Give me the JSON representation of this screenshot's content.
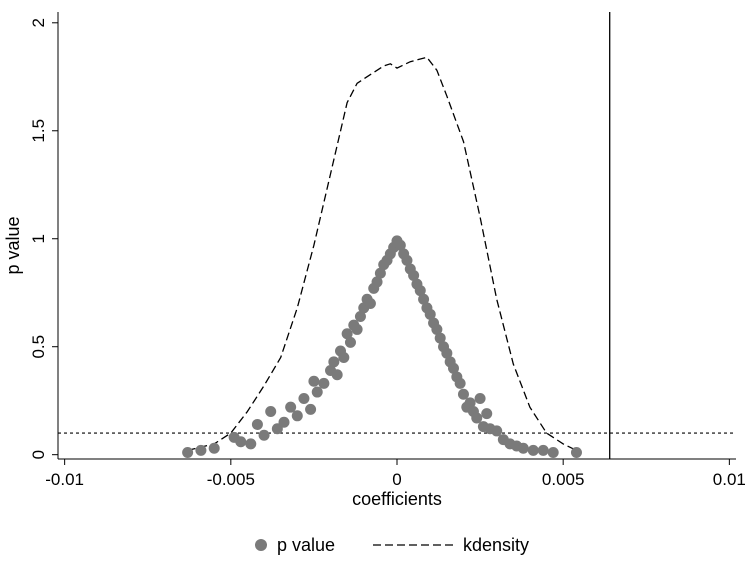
{
  "chart_data": {
    "type": "scatter",
    "xlabel": "coefficients",
    "ylabel": "p value",
    "xlim": [
      -0.0102,
      0.0102
    ],
    "ylim": [
      -0.02,
      2.05
    ],
    "x_ticks": [
      -0.01,
      -0.005,
      0,
      0.005,
      0.01
    ],
    "x_tick_labels": [
      "-0.01",
      "-0.005",
      "0",
      "0.005",
      "0.01"
    ],
    "y_ticks": [
      0,
      0.5,
      1,
      1.5,
      2
    ],
    "y_tick_labels": [
      "0",
      "0.5",
      "1",
      "1.5",
      "2"
    ],
    "grid": false,
    "legend_position": "bottom",
    "reference_lines": {
      "horizontal_y": 0.1,
      "vertical_x": 0.0064
    },
    "colors": {
      "points": "#7a7a7a",
      "density": "#000000",
      "axes": "#000000"
    },
    "series": [
      {
        "name": "p value",
        "kind": "scatter",
        "points": [
          [
            -0.0063,
            0.01
          ],
          [
            -0.0059,
            0.02
          ],
          [
            -0.0055,
            0.03
          ],
          [
            -0.0049,
            0.08
          ],
          [
            -0.0047,
            0.06
          ],
          [
            -0.0044,
            0.05
          ],
          [
            -0.0042,
            0.14
          ],
          [
            -0.004,
            0.09
          ],
          [
            -0.0038,
            0.2
          ],
          [
            -0.0036,
            0.12
          ],
          [
            -0.0034,
            0.15
          ],
          [
            -0.0032,
            0.22
          ],
          [
            -0.003,
            0.18
          ],
          [
            -0.0028,
            0.26
          ],
          [
            -0.0026,
            0.21
          ],
          [
            -0.0025,
            0.34
          ],
          [
            -0.0024,
            0.29
          ],
          [
            -0.0022,
            0.33
          ],
          [
            -0.002,
            0.39
          ],
          [
            -0.0019,
            0.43
          ],
          [
            -0.0018,
            0.37
          ],
          [
            -0.0017,
            0.48
          ],
          [
            -0.0016,
            0.45
          ],
          [
            -0.0015,
            0.56
          ],
          [
            -0.0014,
            0.52
          ],
          [
            -0.0013,
            0.6
          ],
          [
            -0.0012,
            0.58
          ],
          [
            -0.0011,
            0.64
          ],
          [
            -0.001,
            0.68
          ],
          [
            -0.0009,
            0.72
          ],
          [
            -0.0008,
            0.7
          ],
          [
            -0.0007,
            0.77
          ],
          [
            -0.0006,
            0.8
          ],
          [
            -0.0005,
            0.84
          ],
          [
            -0.0004,
            0.88
          ],
          [
            -0.0003,
            0.9
          ],
          [
            -0.0002,
            0.93
          ],
          [
            -0.0001,
            0.96
          ],
          [
            0.0,
            0.99
          ],
          [
            0.0001,
            0.97
          ],
          [
            0.0002,
            0.93
          ],
          [
            0.0003,
            0.9
          ],
          [
            0.0004,
            0.86
          ],
          [
            0.0005,
            0.83
          ],
          [
            0.0006,
            0.79
          ],
          [
            0.0007,
            0.76
          ],
          [
            0.0008,
            0.72
          ],
          [
            0.0009,
            0.68
          ],
          [
            0.001,
            0.65
          ],
          [
            0.0011,
            0.61
          ],
          [
            0.0012,
            0.58
          ],
          [
            0.0013,
            0.54
          ],
          [
            0.0014,
            0.5
          ],
          [
            0.0015,
            0.47
          ],
          [
            0.0016,
            0.43
          ],
          [
            0.0017,
            0.4
          ],
          [
            0.0018,
            0.36
          ],
          [
            0.0019,
            0.33
          ],
          [
            0.002,
            0.28
          ],
          [
            0.0021,
            0.22
          ],
          [
            0.0022,
            0.24
          ],
          [
            0.0023,
            0.2
          ],
          [
            0.0024,
            0.17
          ],
          [
            0.0025,
            0.26
          ],
          [
            0.0026,
            0.13
          ],
          [
            0.0027,
            0.19
          ],
          [
            0.0028,
            0.12
          ],
          [
            0.003,
            0.11
          ],
          [
            0.0032,
            0.07
          ],
          [
            0.0034,
            0.05
          ],
          [
            0.0036,
            0.04
          ],
          [
            0.0038,
            0.03
          ],
          [
            0.0041,
            0.02
          ],
          [
            0.0044,
            0.02
          ],
          [
            0.0047,
            0.01
          ],
          [
            0.0054,
            0.01
          ]
        ]
      },
      {
        "name": "kdensity",
        "kind": "line",
        "style": "dashed",
        "points": [
          [
            -0.0063,
            0.02
          ],
          [
            -0.0055,
            0.05
          ],
          [
            -0.005,
            0.1
          ],
          [
            -0.0045,
            0.2
          ],
          [
            -0.004,
            0.32
          ],
          [
            -0.0035,
            0.45
          ],
          [
            -0.003,
            0.68
          ],
          [
            -0.0025,
            0.97
          ],
          [
            -0.002,
            1.3
          ],
          [
            -0.0015,
            1.63
          ],
          [
            -0.0012,
            1.72
          ],
          [
            -0.0008,
            1.76
          ],
          [
            -0.0004,
            1.8
          ],
          [
            -0.0002,
            1.81
          ],
          [
            0.0,
            1.79
          ],
          [
            0.0004,
            1.82
          ],
          [
            0.0009,
            1.84
          ],
          [
            0.0012,
            1.78
          ],
          [
            0.0015,
            1.66
          ],
          [
            0.002,
            1.45
          ],
          [
            0.0025,
            1.1
          ],
          [
            0.003,
            0.72
          ],
          [
            0.0035,
            0.42
          ],
          [
            0.004,
            0.22
          ],
          [
            0.0045,
            0.1
          ],
          [
            0.005,
            0.05
          ],
          [
            0.0054,
            0.02
          ]
        ]
      }
    ]
  }
}
